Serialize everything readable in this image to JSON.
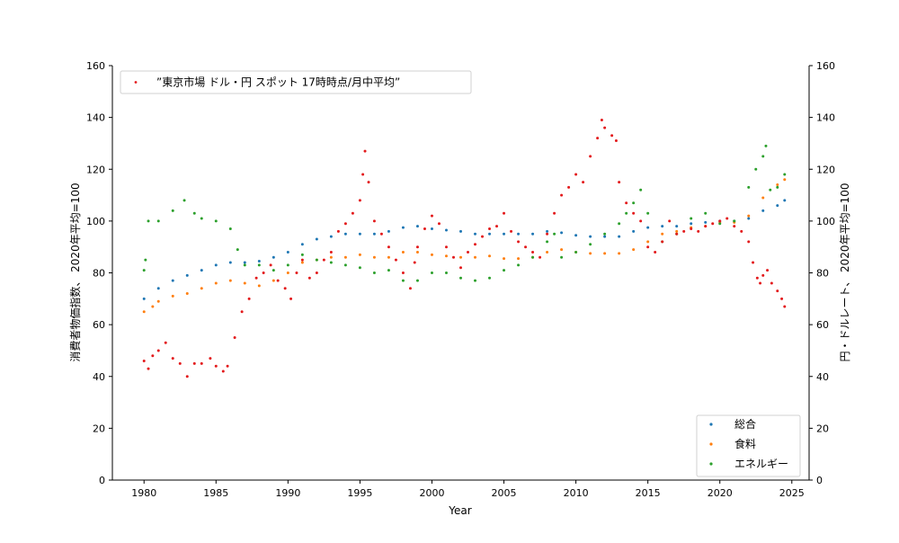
{
  "chart_data": {
    "type": "scatter",
    "x_label": "Year",
    "left_axis": {
      "label": "消費者物価指数、 2020年平均=100",
      "ylim": [
        0,
        160
      ],
      "ticks": [
        0,
        20,
        40,
        60,
        80,
        100,
        120,
        140,
        160
      ]
    },
    "right_axis": {
      "label": "円・ドルレート、 2020年平均=100",
      "ylim": [
        0,
        160
      ],
      "ticks": [
        0,
        20,
        40,
        60,
        80,
        100,
        120,
        140,
        160
      ]
    },
    "xlim": [
      1977.8,
      2026.2
    ],
    "x_ticks": [
      1980,
      1985,
      1990,
      1995,
      2000,
      2005,
      2010,
      2015,
      2020,
      2025
    ],
    "legend_top_left": [
      "”東京市場 ドル・円 スポット 17時時点/月中平均”"
    ],
    "legend_bottom_right": [
      "総合",
      "食料",
      "エネルギー"
    ],
    "series": [
      {
        "name": "総合",
        "axis": "left",
        "color": "#1f77b4",
        "points": [
          [
            1980.0,
            70
          ],
          [
            1981.0,
            74
          ],
          [
            1982.0,
            77
          ],
          [
            1983.0,
            79
          ],
          [
            1984.0,
            81
          ],
          [
            1985.0,
            83
          ],
          [
            1986.0,
            84
          ],
          [
            1987.0,
            84
          ],
          [
            1988.0,
            84.5
          ],
          [
            1989.0,
            86
          ],
          [
            1990.0,
            88
          ],
          [
            1991.0,
            91
          ],
          [
            1992.0,
            93
          ],
          [
            1993.0,
            94
          ],
          [
            1994.0,
            95
          ],
          [
            1995.0,
            95
          ],
          [
            1996.0,
            95
          ],
          [
            1997.0,
            96
          ],
          [
            1998.0,
            97.5
          ],
          [
            1999.0,
            98
          ],
          [
            2000.0,
            97
          ],
          [
            2001.0,
            96.5
          ],
          [
            2002.0,
            96
          ],
          [
            2003.0,
            95
          ],
          [
            2004.0,
            95
          ],
          [
            2005.0,
            95
          ],
          [
            2006.0,
            95
          ],
          [
            2007.0,
            95
          ],
          [
            2008.0,
            96
          ],
          [
            2009.0,
            95.5
          ],
          [
            2010.0,
            94.5
          ],
          [
            2011.0,
            94
          ],
          [
            2012.0,
            94
          ],
          [
            2013.0,
            94
          ],
          [
            2014.0,
            96
          ],
          [
            2015.0,
            97.5
          ],
          [
            2016.0,
            98
          ],
          [
            2017.0,
            98
          ],
          [
            2018.0,
            99
          ],
          [
            2019.0,
            99.5
          ],
          [
            2020.0,
            100
          ],
          [
            2021.0,
            100
          ],
          [
            2022.0,
            101
          ],
          [
            2023.0,
            104
          ],
          [
            2024.0,
            106
          ],
          [
            2024.5,
            108
          ]
        ]
      },
      {
        "name": "食料",
        "axis": "left",
        "color": "#ff7f0e",
        "points": [
          [
            1980.0,
            65
          ],
          [
            1980.6,
            67
          ],
          [
            1981.0,
            69
          ],
          [
            1982.0,
            71
          ],
          [
            1983.0,
            72
          ],
          [
            1984.0,
            74
          ],
          [
            1985.0,
            76
          ],
          [
            1986.0,
            77
          ],
          [
            1987.0,
            76
          ],
          [
            1988.0,
            75
          ],
          [
            1989.0,
            77
          ],
          [
            1990.0,
            80
          ],
          [
            1991.0,
            84
          ],
          [
            1992.0,
            85
          ],
          [
            1993.0,
            86
          ],
          [
            1994.0,
            86
          ],
          [
            1995.0,
            87
          ],
          [
            1996.0,
            86
          ],
          [
            1997.0,
            86
          ],
          [
            1998.0,
            88
          ],
          [
            1999.0,
            88
          ],
          [
            2000.0,
            87
          ],
          [
            2001.0,
            86.5
          ],
          [
            2002.0,
            86
          ],
          [
            2003.0,
            86
          ],
          [
            2004.0,
            86.5
          ],
          [
            2005.0,
            85.5
          ],
          [
            2006.0,
            85.5
          ],
          [
            2007.0,
            86
          ],
          [
            2008.0,
            88
          ],
          [
            2009.0,
            89
          ],
          [
            2010.0,
            88
          ],
          [
            2011.0,
            87.5
          ],
          [
            2012.0,
            87.5
          ],
          [
            2013.0,
            87.5
          ],
          [
            2014.0,
            89
          ],
          [
            2015.0,
            92
          ],
          [
            2016.0,
            95
          ],
          [
            2017.0,
            96
          ],
          [
            2018.0,
            97.5
          ],
          [
            2019.0,
            98
          ],
          [
            2020.0,
            99.5
          ],
          [
            2021.0,
            99.5
          ],
          [
            2022.0,
            102
          ],
          [
            2023.0,
            109
          ],
          [
            2024.0,
            114
          ],
          [
            2024.5,
            116
          ]
        ]
      },
      {
        "name": "エネルギー",
        "axis": "left",
        "color": "#2ca02c",
        "points": [
          [
            1980.0,
            81
          ],
          [
            1980.1,
            85
          ],
          [
            1980.3,
            100
          ],
          [
            1981.0,
            100
          ],
          [
            1982.0,
            104
          ],
          [
            1982.8,
            108
          ],
          [
            1983.5,
            103
          ],
          [
            1984.0,
            101
          ],
          [
            1985.0,
            100
          ],
          [
            1986.0,
            97
          ],
          [
            1986.5,
            89
          ],
          [
            1987.0,
            83
          ],
          [
            1988.0,
            83
          ],
          [
            1989.0,
            81
          ],
          [
            1990.0,
            83
          ],
          [
            1991.0,
            87
          ],
          [
            1992.0,
            85
          ],
          [
            1993.0,
            84
          ],
          [
            1994.0,
            83
          ],
          [
            1995.0,
            82
          ],
          [
            1996.0,
            80
          ],
          [
            1997.0,
            81
          ],
          [
            1998.0,
            77
          ],
          [
            1999.0,
            77
          ],
          [
            2000.0,
            80
          ],
          [
            2001.0,
            80
          ],
          [
            2002.0,
            78
          ],
          [
            2003.0,
            77
          ],
          [
            2004.0,
            78
          ],
          [
            2005.0,
            81
          ],
          [
            2006.0,
            83
          ],
          [
            2007.0,
            86
          ],
          [
            2008.0,
            92
          ],
          [
            2008.5,
            95
          ],
          [
            2009.0,
            86
          ],
          [
            2010.0,
            88
          ],
          [
            2011.0,
            91
          ],
          [
            2012.0,
            95
          ],
          [
            2013.0,
            99
          ],
          [
            2013.5,
            103
          ],
          [
            2014.0,
            107
          ],
          [
            2014.5,
            112
          ],
          [
            2015.0,
            103
          ],
          [
            2016.0,
            92
          ],
          [
            2017.0,
            95
          ],
          [
            2018.0,
            101
          ],
          [
            2019.0,
            103
          ],
          [
            2020.0,
            99
          ],
          [
            2021.0,
            100
          ],
          [
            2022.0,
            113
          ],
          [
            2022.5,
            120
          ],
          [
            2023.0,
            125
          ],
          [
            2023.2,
            129
          ],
          [
            2023.5,
            112
          ],
          [
            2024.0,
            113
          ],
          [
            2024.5,
            118
          ]
        ]
      },
      {
        "name": "”東京市場 ドル・円 スポット 17時時点/月中平均”",
        "axis": "right",
        "color": "#e31a1c",
        "points": [
          [
            1980.0,
            46
          ],
          [
            1980.3,
            43
          ],
          [
            1980.6,
            48
          ],
          [
            1981.0,
            50
          ],
          [
            1981.5,
            53
          ],
          [
            1982.0,
            47
          ],
          [
            1982.5,
            45
          ],
          [
            1983.0,
            40
          ],
          [
            1983.5,
            45
          ],
          [
            1984.0,
            45
          ],
          [
            1984.6,
            47
          ],
          [
            1985.0,
            44
          ],
          [
            1985.5,
            42
          ],
          [
            1985.8,
            44
          ],
          [
            1986.3,
            55
          ],
          [
            1986.8,
            65
          ],
          [
            1987.3,
            70
          ],
          [
            1987.8,
            78
          ],
          [
            1988.3,
            80
          ],
          [
            1988.8,
            83
          ],
          [
            1989.3,
            77
          ],
          [
            1989.8,
            74
          ],
          [
            1990.2,
            70
          ],
          [
            1990.6,
            80
          ],
          [
            1991.0,
            85
          ],
          [
            1991.5,
            78
          ],
          [
            1992.0,
            80
          ],
          [
            1992.5,
            85
          ],
          [
            1993.0,
            88
          ],
          [
            1993.5,
            96
          ],
          [
            1994.0,
            99
          ],
          [
            1994.5,
            103
          ],
          [
            1995.0,
            108
          ],
          [
            1995.2,
            118
          ],
          [
            1995.35,
            127
          ],
          [
            1995.6,
            115
          ],
          [
            1996.0,
            100
          ],
          [
            1996.5,
            95
          ],
          [
            1997.0,
            90
          ],
          [
            1997.5,
            85
          ],
          [
            1998.0,
            80
          ],
          [
            1998.5,
            74
          ],
          [
            1998.8,
            84
          ],
          [
            1999.0,
            90
          ],
          [
            1999.5,
            97
          ],
          [
            2000.0,
            102
          ],
          [
            2000.5,
            99
          ],
          [
            2001.0,
            90
          ],
          [
            2001.5,
            86
          ],
          [
            2002.0,
            82
          ],
          [
            2002.5,
            88
          ],
          [
            2003.0,
            91
          ],
          [
            2003.5,
            94
          ],
          [
            2004.0,
            97
          ],
          [
            2004.5,
            98
          ],
          [
            2005.0,
            103
          ],
          [
            2005.5,
            96
          ],
          [
            2006.0,
            92
          ],
          [
            2006.5,
            90
          ],
          [
            2007.0,
            88
          ],
          [
            2007.5,
            86
          ],
          [
            2008.0,
            95
          ],
          [
            2008.5,
            103
          ],
          [
            2009.0,
            110
          ],
          [
            2009.5,
            113
          ],
          [
            2010.0,
            118
          ],
          [
            2010.5,
            115
          ],
          [
            2011.0,
            125
          ],
          [
            2011.5,
            132
          ],
          [
            2011.8,
            139
          ],
          [
            2012.0,
            136
          ],
          [
            2012.5,
            133
          ],
          [
            2012.8,
            131
          ],
          [
            2013.0,
            115
          ],
          [
            2013.5,
            107
          ],
          [
            2014.0,
            103
          ],
          [
            2014.5,
            100
          ],
          [
            2015.0,
            90
          ],
          [
            2015.5,
            88
          ],
          [
            2016.0,
            92
          ],
          [
            2016.5,
            100
          ],
          [
            2017.0,
            95
          ],
          [
            2017.5,
            96
          ],
          [
            2018.0,
            97
          ],
          [
            2018.5,
            96
          ],
          [
            2019.0,
            98
          ],
          [
            2019.5,
            99
          ],
          [
            2020.0,
            100
          ],
          [
            2020.5,
            101
          ],
          [
            2021.0,
            98
          ],
          [
            2021.5,
            96
          ],
          [
            2022.0,
            92
          ],
          [
            2022.3,
            84
          ],
          [
            2022.6,
            78
          ],
          [
            2022.8,
            76
          ],
          [
            2023.0,
            79
          ],
          [
            2023.3,
            81
          ],
          [
            2023.6,
            76
          ],
          [
            2024.0,
            73
          ],
          [
            2024.3,
            70
          ],
          [
            2024.5,
            67
          ]
        ]
      }
    ]
  }
}
